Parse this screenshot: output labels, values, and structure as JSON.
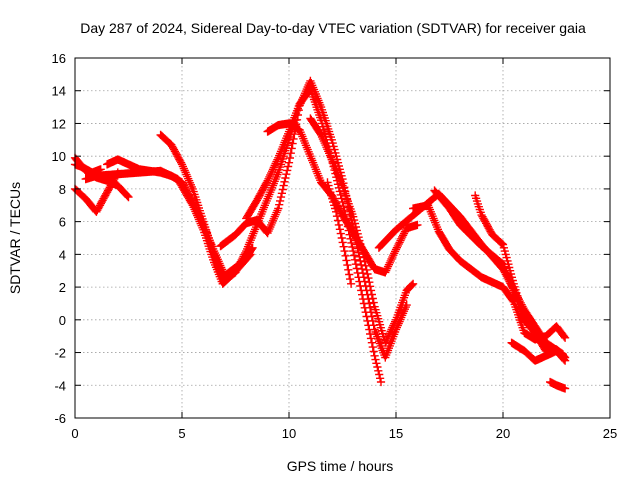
{
  "chart_data": {
    "type": "scatter",
    "title": "Day 287 of 2024, Sidereal Day-to-day VTEC variation (SDTVAR) for receiver gaia",
    "xlabel": "GPS time / hours",
    "ylabel": "SDTVAR / TECUs",
    "xlim": [
      0,
      25
    ],
    "ylim": [
      -6,
      16
    ],
    "xticks": [
      0,
      5,
      10,
      15,
      20,
      25
    ],
    "yticks": [
      -6,
      -4,
      -2,
      0,
      2,
      4,
      6,
      8,
      10,
      12,
      14,
      16
    ],
    "grid": true,
    "marker": "plus",
    "color": "#ff0000",
    "series": [
      {
        "name": "track-1",
        "x": [
          0.0,
          0.5,
          1.0,
          1.5,
          2.0,
          2.5
        ],
        "y": [
          9.9,
          9.1,
          8.7,
          8.5,
          8.2,
          7.5
        ]
      },
      {
        "name": "track-2",
        "x": [
          0.0,
          0.4,
          0.8,
          1.2
        ],
        "y": [
          9.5,
          9.3,
          9.0,
          9.2
        ]
      },
      {
        "name": "track-3",
        "x": [
          0.0,
          0.5,
          1.0,
          1.5,
          2.0
        ],
        "y": [
          8.0,
          7.4,
          6.6,
          7.8,
          9.0
        ]
      },
      {
        "name": "track-4",
        "x": [
          0.5,
          1.0,
          2.0,
          3.0,
          4.0,
          4.8,
          5.5,
          6.0,
          6.5,
          6.9,
          7.3,
          7.8,
          8.2
        ],
        "y": [
          8.6,
          8.8,
          8.9,
          9.0,
          9.1,
          8.6,
          7.0,
          5.5,
          3.5,
          2.2,
          2.7,
          3.4,
          4.0
        ]
      },
      {
        "name": "track-5",
        "x": [
          1.5,
          2.0,
          3.0,
          4.0,
          4.5,
          5.0,
          5.5,
          6.0,
          6.5,
          7.0,
          7.5,
          8.0,
          8.3
        ],
        "y": [
          9.5,
          9.8,
          9.2,
          9.0,
          8.8,
          8.4,
          7.2,
          5.8,
          4.2,
          2.7,
          3.2,
          3.8,
          4.4
        ]
      },
      {
        "name": "track-6",
        "x": [
          4.0,
          4.5,
          5.0,
          5.5,
          6.0,
          6.5,
          7.0,
          7.5,
          8.0,
          8.5,
          9.0,
          9.5,
          10.0,
          10.3
        ],
        "y": [
          11.3,
          10.7,
          9.5,
          8.0,
          6.0,
          4.0,
          2.4,
          2.9,
          4.2,
          5.8,
          7.4,
          9.0,
          11.0,
          12.2
        ]
      },
      {
        "name": "track-7",
        "x": [
          6.8,
          7.5,
          8.0,
          8.5,
          9.0,
          9.5,
          10.0,
          10.5,
          11.0,
          11.5,
          12.0,
          12.5,
          13.0,
          13.5,
          14.0,
          14.5,
          15.0,
          15.5
        ],
        "y": [
          4.5,
          5.2,
          5.9,
          6.1,
          5.3,
          6.8,
          9.6,
          13.1,
          14.6,
          13.0,
          11.0,
          8.6,
          5.6,
          2.6,
          -0.6,
          -2.3,
          -0.6,
          0.9
        ]
      },
      {
        "name": "track-8",
        "x": [
          8.0,
          8.5,
          9.0,
          9.5,
          10.0,
          10.5,
          11.0,
          11.5,
          12.0,
          12.5,
          13.0,
          13.5,
          14.0,
          14.3
        ],
        "y": [
          6.2,
          7.3,
          8.5,
          9.9,
          11.5,
          13.2,
          14.1,
          12.2,
          9.8,
          7.2,
          4.2,
          1.0,
          -2.2,
          -3.8
        ]
      },
      {
        "name": "track-9",
        "x": [
          9.0,
          9.5,
          10.0,
          10.5,
          11.0,
          11.5,
          12.0,
          12.5,
          13.0,
          13.5,
          14.0,
          14.5,
          15.0,
          15.5,
          16.0
        ],
        "y": [
          11.5,
          11.9,
          12.0,
          11.6,
          10.0,
          8.4,
          7.6,
          6.4,
          5.3,
          4.2,
          3.1,
          2.9,
          4.3,
          5.6,
          5.8
        ]
      },
      {
        "name": "track-10",
        "x": [
          11.0,
          11.5,
          12.0,
          12.5,
          13.0,
          13.5,
          14.0,
          14.5,
          15.0,
          15.5,
          15.8
        ],
        "y": [
          12.3,
          11.3,
          9.8,
          8.2,
          6.3,
          3.8,
          0.8,
          -1.4,
          0.0,
          1.8,
          2.2
        ]
      },
      {
        "name": "track-11",
        "x": [
          11.8,
          12.2,
          12.6,
          12.9
        ],
        "y": [
          8.4,
          6.6,
          4.2,
          2.2
        ]
      },
      {
        "name": "track-12",
        "x": [
          14.2,
          15.0,
          16.0,
          17.0,
          18.0,
          19.0,
          20.0,
          21.0,
          22.0,
          22.8
        ],
        "y": [
          4.4,
          5.5,
          6.6,
          7.7,
          6.3,
          4.6,
          3.1,
          0.6,
          -1.4,
          -2.1
        ]
      },
      {
        "name": "track-13",
        "x": [
          15.8,
          16.5,
          17.0,
          17.5,
          18.0,
          19.0,
          20.0,
          20.5,
          21.0,
          21.5,
          22.0,
          22.5,
          22.9
        ],
        "y": [
          6.8,
          7.0,
          5.4,
          4.3,
          3.6,
          2.6,
          2.0,
          1.1,
          -0.8,
          -1.2,
          -1.0,
          -0.4,
          -1.1
        ]
      },
      {
        "name": "track-14",
        "x": [
          16.8,
          17.5,
          18.0,
          19.0,
          20.0,
          20.5,
          21.0,
          21.5,
          22.0,
          22.5,
          22.9
        ],
        "y": [
          7.9,
          6.8,
          5.8,
          4.5,
          3.4,
          1.8,
          0.1,
          -0.8,
          -1.9,
          -1.8,
          -2.3
        ]
      },
      {
        "name": "track-15",
        "x": [
          18.7,
          19.0,
          19.5,
          20.0,
          20.5,
          21.0,
          21.5
        ],
        "y": [
          7.6,
          6.4,
          5.2,
          4.6,
          2.2,
          0.0,
          -0.8
        ]
      },
      {
        "name": "track-16",
        "x": [
          20.4,
          21.0,
          21.5,
          22.0,
          22.5,
          22.9
        ],
        "y": [
          -1.4,
          -1.9,
          -2.5,
          -2.2,
          -1.9,
          -2.5
        ]
      },
      {
        "name": "track-17",
        "x": [
          22.2,
          22.5,
          22.9
        ],
        "y": [
          -3.8,
          -4.0,
          -4.2
        ]
      }
    ]
  }
}
